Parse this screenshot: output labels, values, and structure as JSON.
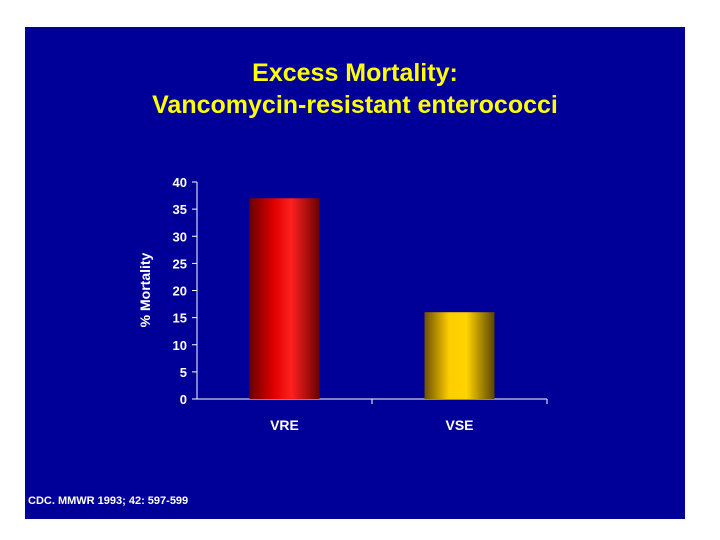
{
  "slide": {
    "title_line1": "Excess Mortality:",
    "title_line2": "Vancomycin-resistant enterococci",
    "citation": "CDC. MMWR 1993; 42: 597-599",
    "background_color": "#000099",
    "title_color": "#ffff00"
  },
  "chart_data": {
    "type": "bar",
    "categories": [
      "VRE",
      "VSE"
    ],
    "values": [
      37,
      16
    ],
    "ylabel": "% Mortality",
    "xlabel": "",
    "ylim": [
      0,
      40
    ],
    "yticks": [
      0,
      5,
      10,
      15,
      20,
      25,
      30,
      35,
      40
    ],
    "grid": false,
    "legend": false,
    "bar_colors": [
      "#e00000",
      "#ffcc00"
    ]
  }
}
